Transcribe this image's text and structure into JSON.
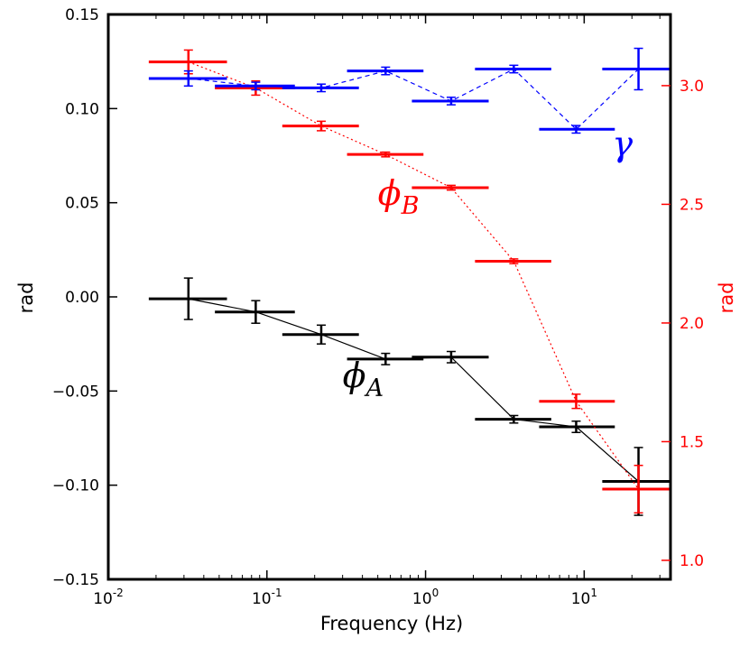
{
  "chart_data": {
    "type": "scatter",
    "xlabel": "Frequency (Hz)",
    "ylabel_left": "rad",
    "ylabel_right": "rad",
    "xscale": "log",
    "xlim": [
      0.01,
      35
    ],
    "ylim_left": [
      -0.15,
      0.15
    ],
    "ylim_right": [
      0.92,
      3.3
    ],
    "x_ticks": [
      {
        "value": 0.01,
        "base": "10",
        "exp": "-2"
      },
      {
        "value": 0.1,
        "base": "10",
        "exp": "-1"
      },
      {
        "value": 1,
        "base": "10",
        "exp": "0"
      },
      {
        "value": 10,
        "base": "10",
        "exp": "1"
      }
    ],
    "y_ticks_left": [
      {
        "value": -0.15,
        "label": "−0.15"
      },
      {
        "value": -0.1,
        "label": "−0.10"
      },
      {
        "value": -0.05,
        "label": "−0.05"
      },
      {
        "value": 0.0,
        "label": "0.00"
      },
      {
        "value": 0.05,
        "label": "0.05"
      },
      {
        "value": 0.1,
        "label": "0.10"
      },
      {
        "value": 0.15,
        "label": "0.15"
      }
    ],
    "y_ticks_right": [
      {
        "value": 1.0,
        "label": "1.0"
      },
      {
        "value": 1.5,
        "label": "1.5"
      },
      {
        "value": 2.0,
        "label": "2.0"
      },
      {
        "value": 2.5,
        "label": "2.5"
      },
      {
        "value": 3.0,
        "label": "3.0"
      }
    ],
    "series": [
      {
        "name": "phi_A",
        "annotation": {
          "base": "ϕ",
          "sub": "A",
          "x": 0.3,
          "y": -0.048
        },
        "axis": "left",
        "color": "#000000",
        "line": "solid",
        "points": [
          {
            "x": 0.032,
            "y": -0.001,
            "xlo": 0.018,
            "xhi": 0.056,
            "yerr": 0.011
          },
          {
            "x": 0.085,
            "y": -0.008,
            "xlo": 0.047,
            "xhi": 0.15,
            "yerr": 0.006
          },
          {
            "x": 0.22,
            "y": -0.02,
            "xlo": 0.125,
            "xhi": 0.38,
            "yerr": 0.005
          },
          {
            "x": 0.56,
            "y": -0.033,
            "xlo": 0.32,
            "xhi": 0.97,
            "yerr": 0.003
          },
          {
            "x": 1.45,
            "y": -0.032,
            "xlo": 0.82,
            "xhi": 2.5,
            "yerr": 0.003
          },
          {
            "x": 3.6,
            "y": -0.065,
            "xlo": 2.05,
            "xhi": 6.2,
            "yerr": 0.002
          },
          {
            "x": 8.9,
            "y": -0.069,
            "xlo": 5.2,
            "xhi": 15.6,
            "yerr": 0.003
          },
          {
            "x": 22,
            "y": -0.098,
            "xlo": 13,
            "xhi": 37,
            "yerr": 0.018
          }
        ]
      },
      {
        "name": "phi_B",
        "annotation": {
          "base": "ϕ",
          "sub": "B",
          "x": 0.5,
          "y": 0.049
        },
        "axis": "right",
        "color": "#ff0000",
        "line": "dotted",
        "points": [
          {
            "x": 0.032,
            "y": 3.1,
            "xlo": 0.018,
            "xhi": 0.056,
            "yerr": 0.05
          },
          {
            "x": 0.085,
            "y": 2.99,
            "xlo": 0.047,
            "xhi": 0.15,
            "yerr": 0.03
          },
          {
            "x": 0.22,
            "y": 2.83,
            "xlo": 0.125,
            "xhi": 0.38,
            "yerr": 0.02
          },
          {
            "x": 0.56,
            "y": 2.71,
            "xlo": 0.32,
            "xhi": 0.97,
            "yerr": 0.01
          },
          {
            "x": 1.45,
            "y": 2.57,
            "xlo": 0.82,
            "xhi": 2.5,
            "yerr": 0.01
          },
          {
            "x": 3.6,
            "y": 2.26,
            "xlo": 2.05,
            "xhi": 6.2,
            "yerr": 0.01
          },
          {
            "x": 8.9,
            "y": 1.67,
            "xlo": 5.2,
            "xhi": 15.6,
            "yerr": 0.03
          },
          {
            "x": 22,
            "y": 1.3,
            "xlo": 13,
            "xhi": 37,
            "yerr": 0.1
          }
        ]
      },
      {
        "name": "gamma",
        "annotation": {
          "base": "γ",
          "sub": "",
          "x": 15,
          "y": 0.075
        },
        "axis": "left",
        "color": "#0000ff",
        "line": "dashed",
        "points": [
          {
            "x": 0.032,
            "y": 0.116,
            "xlo": 0.018,
            "xhi": 0.056,
            "yerr": 0.004
          },
          {
            "x": 0.085,
            "y": 0.112,
            "xlo": 0.047,
            "xhi": 0.15,
            "yerr": 0.002
          },
          {
            "x": 0.22,
            "y": 0.111,
            "xlo": 0.125,
            "xhi": 0.38,
            "yerr": 0.002
          },
          {
            "x": 0.56,
            "y": 0.12,
            "xlo": 0.32,
            "xhi": 0.97,
            "yerr": 0.002
          },
          {
            "x": 1.45,
            "y": 0.104,
            "xlo": 0.82,
            "xhi": 2.5,
            "yerr": 0.002
          },
          {
            "x": 3.6,
            "y": 0.121,
            "xlo": 2.05,
            "xhi": 6.2,
            "yerr": 0.002
          },
          {
            "x": 8.9,
            "y": 0.089,
            "xlo": 5.2,
            "xhi": 15.6,
            "yerr": 0.002
          },
          {
            "x": 22,
            "y": 0.121,
            "xlo": 13,
            "xhi": 37,
            "yerr": 0.011
          }
        ]
      }
    ]
  }
}
